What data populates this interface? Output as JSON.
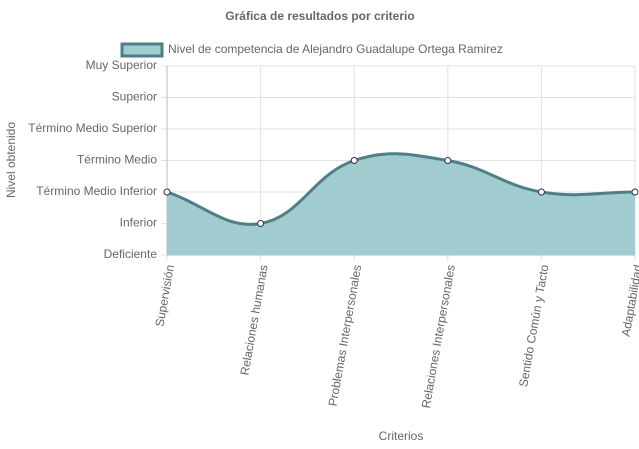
{
  "chart_data": {
    "type": "line",
    "title": "Gráfica de resultados por criterio",
    "x_label": "Criterios",
    "y_label": "Nivel obtenido",
    "categories": [
      "Supervisión",
      "Relaciones humanas",
      "Problemas Interpersonales",
      "Relaciones Interpersonales",
      "Sentido Común y Tacto",
      "Adaptabilidad"
    ],
    "series": [
      {
        "name": "Nivel de competencia de Alejandro Guadalupe Ortega Ramirez",
        "color": "#4e7f86",
        "fill": "#a0ccd0",
        "values": [
          2,
          1,
          3,
          3,
          2,
          2
        ]
      }
    ],
    "ylim": [
      0,
      6
    ],
    "yticks": [
      {
        "value": 0,
        "label": "Deficiente"
      },
      {
        "value": 1,
        "label": "Inferior"
      },
      {
        "value": 2,
        "label": "Término Medio Inferior"
      },
      {
        "value": 3,
        "label": "Término Medio"
      },
      {
        "value": 4,
        "label": "Término Medio Superior"
      },
      {
        "value": 5,
        "label": "Superior"
      },
      {
        "value": 6,
        "label": "Muy Superior"
      }
    ],
    "grid": true
  }
}
